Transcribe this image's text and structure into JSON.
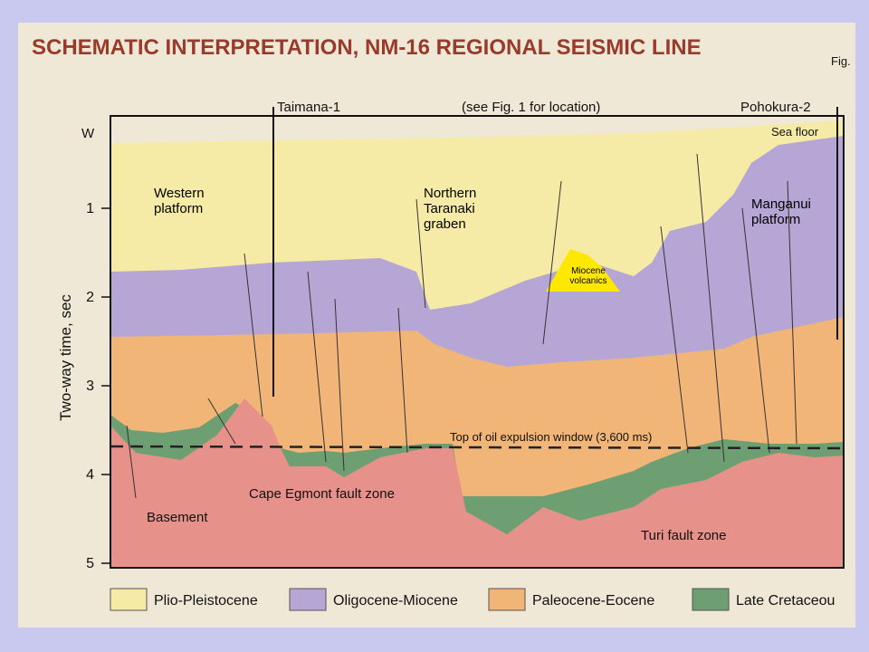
{
  "title": "SCHEMATIC INTERPRETATION, NM-16 REGIONAL SEISMIC LINE",
  "figure_ref": "Fig.",
  "wells": [
    "Taimana-1",
    "Pohokura-2"
  ],
  "location_note": "(see Fig. 1 for location)",
  "direction": "W",
  "sea_floor": "Sea floor",
  "regions": {
    "western": "Western platform",
    "graben": "Northern Taranaki graben",
    "manganui": "Manganui platform",
    "volcanics": "Miocene volcanics",
    "oil_window": "Top of oil expulsion window (3,600 ms)",
    "cape_egmont": "Cape Egmont fault zone",
    "basement": "Basement",
    "turi": "Turi fault zone"
  },
  "axis": {
    "label": "Two-way time, sec",
    "ticks": [
      1,
      2,
      3,
      4,
      5
    ]
  },
  "legend": [
    "Plio-Pleistocene",
    "Oligocene-Miocene",
    "Paleocene-Eocene",
    "Late Cretaceou"
  ]
}
